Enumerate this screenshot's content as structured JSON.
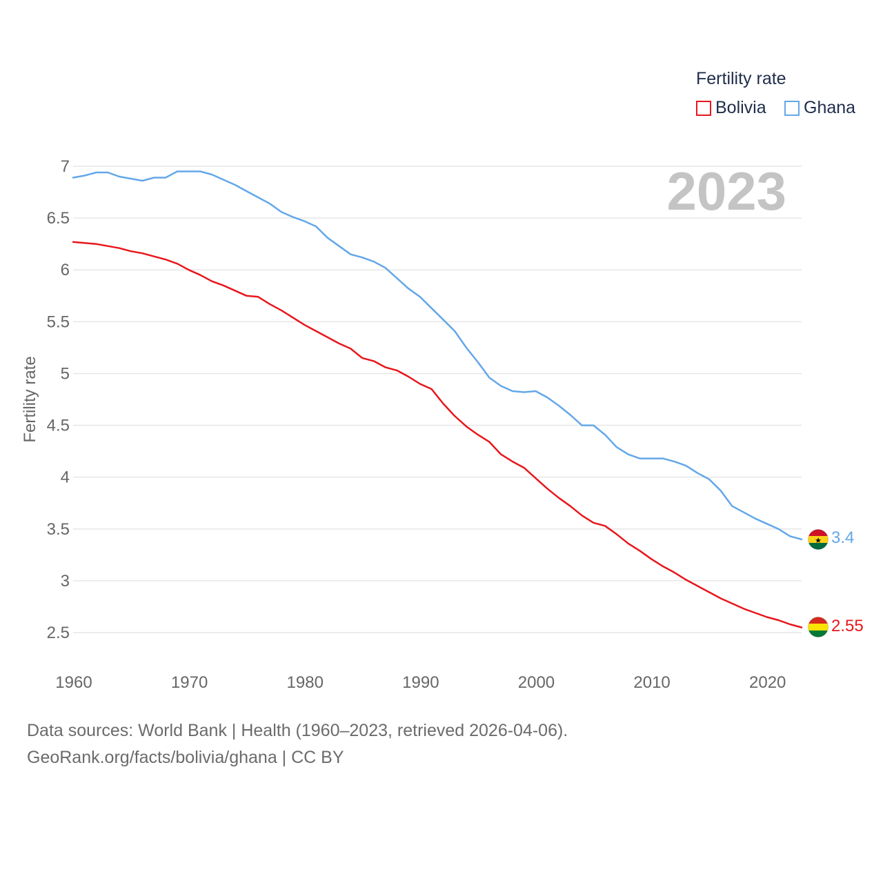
{
  "legend": {
    "title": "Fertility rate",
    "items": [
      {
        "name": "Bolivia",
        "color": "#e8161b"
      },
      {
        "name": "Ghana",
        "color": "#63a7e8"
      }
    ]
  },
  "year_label": "2023",
  "footer": {
    "line1": "Data sources: World Bank | Health (1960–2023, retrieved 2026-04-06).",
    "line2": "GeoRank.org/facts/bolivia/ghana | CC BY"
  },
  "chart_data": {
    "type": "line",
    "title": "Fertility rate",
    "xlabel": "",
    "ylabel": "Fertility rate",
    "xlim": [
      1960,
      2023
    ],
    "ylim": [
      2.5,
      7
    ],
    "x_ticks": [
      1960,
      1970,
      1980,
      1990,
      2000,
      2010,
      2020
    ],
    "y_ticks": [
      2.5,
      3,
      3.5,
      4,
      4.5,
      5,
      5.5,
      6,
      6.5,
      7
    ],
    "y_tick_labels": [
      "2.5",
      "3",
      "3.5",
      "4",
      "4.5",
      "5",
      "5.5",
      "6",
      "6.5",
      "7"
    ],
    "x": [
      1960,
      1961,
      1962,
      1963,
      1964,
      1965,
      1966,
      1967,
      1968,
      1969,
      1970,
      1971,
      1972,
      1973,
      1974,
      1975,
      1976,
      1977,
      1978,
      1979,
      1980,
      1981,
      1982,
      1983,
      1984,
      1985,
      1986,
      1987,
      1988,
      1989,
      1990,
      1991,
      1992,
      1993,
      1994,
      1995,
      1996,
      1997,
      1998,
      1999,
      2000,
      2001,
      2002,
      2003,
      2004,
      2005,
      2006,
      2007,
      2008,
      2009,
      2010,
      2011,
      2012,
      2013,
      2014,
      2015,
      2016,
      2017,
      2018,
      2019,
      2020,
      2021,
      2022,
      2023
    ],
    "series": [
      {
        "name": "Bolivia",
        "color": "#e8161b",
        "end_label": "2.55",
        "values": [
          6.27,
          6.26,
          6.25,
          6.23,
          6.21,
          6.18,
          6.16,
          6.13,
          6.1,
          6.06,
          6.0,
          5.95,
          5.89,
          5.85,
          5.8,
          5.75,
          5.74,
          5.67,
          5.61,
          5.54,
          5.47,
          5.41,
          5.35,
          5.29,
          5.24,
          5.15,
          5.12,
          5.06,
          5.03,
          4.97,
          4.9,
          4.85,
          4.71,
          4.59,
          4.49,
          4.41,
          4.34,
          4.22,
          4.15,
          4.09,
          3.99,
          3.89,
          3.8,
          3.72,
          3.63,
          3.56,
          3.53,
          3.45,
          3.36,
          3.29,
          3.21,
          3.14,
          3.08,
          3.01,
          2.95,
          2.89,
          2.83,
          2.78,
          2.73,
          2.69,
          2.65,
          2.62,
          2.58,
          2.55
        ]
      },
      {
        "name": "Ghana",
        "color": "#63a7e8",
        "end_label": "3.4",
        "values": [
          6.89,
          6.91,
          6.94,
          6.94,
          6.9,
          6.88,
          6.86,
          6.89,
          6.89,
          6.95,
          6.95,
          6.95,
          6.92,
          6.87,
          6.82,
          6.76,
          6.7,
          6.64,
          6.56,
          6.51,
          6.47,
          6.42,
          6.31,
          6.23,
          6.15,
          6.12,
          6.08,
          6.02,
          5.92,
          5.82,
          5.74,
          5.63,
          5.52,
          5.41,
          5.25,
          5.11,
          4.96,
          4.88,
          4.83,
          4.82,
          4.83,
          4.77,
          4.69,
          4.6,
          4.5,
          4.5,
          4.41,
          4.29,
          4.22,
          4.18,
          4.18,
          4.18,
          4.15,
          4.11,
          4.04,
          3.98,
          3.87,
          3.72,
          3.66,
          3.6,
          3.55,
          3.5,
          3.43,
          3.4
        ]
      }
    ]
  }
}
